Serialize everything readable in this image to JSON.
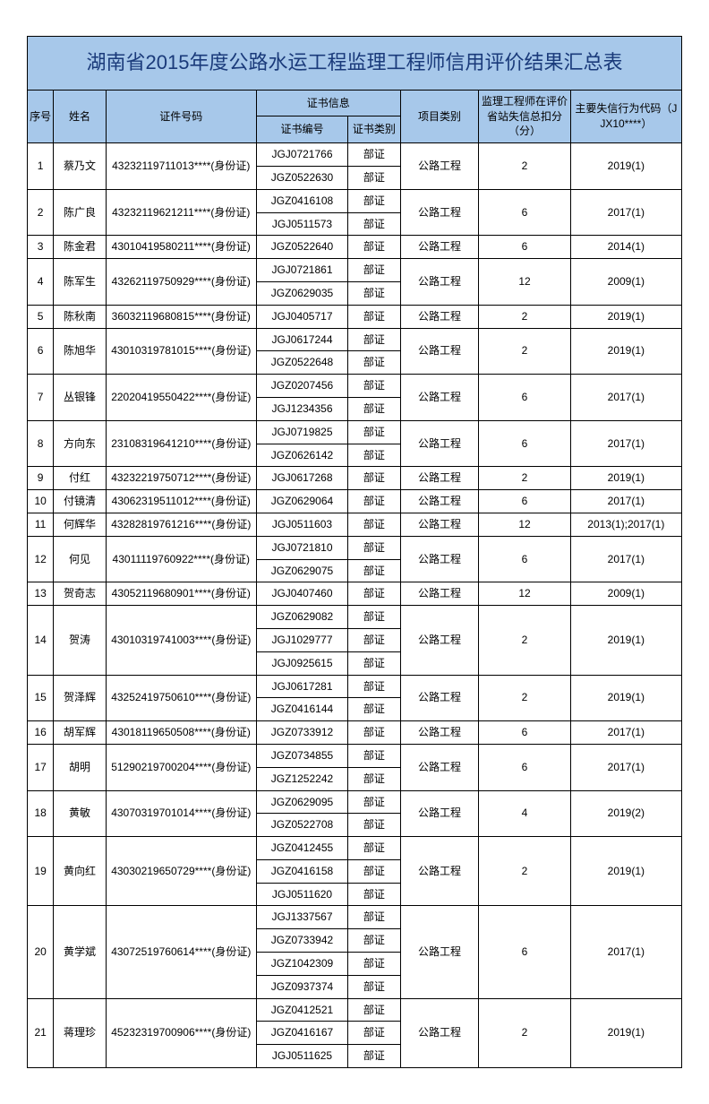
{
  "title": "湖南省2015年度公路水运工程监理工程师信用评价结果汇总表",
  "headers": {
    "seq": "序号",
    "name": "姓名",
    "id": "证件号码",
    "certinfo": "证书信息",
    "certno": "证书编号",
    "certtype": "证书类别",
    "project": "项目类别",
    "score": "监理工程师在评价省站失信总扣分（分）",
    "code": "主要失信行为代码（JJX10****）"
  },
  "colors": {
    "header_bg": "#a7c8ea",
    "title_color": "#1a3a7a",
    "border": "#000000"
  },
  "rows": [
    {
      "seq": "1",
      "name": "蔡乃文",
      "id": "43232119711013****(身份证)",
      "certs": [
        {
          "no": "JGJ0721766",
          "tp": "部证"
        },
        {
          "no": "JGZ0522630",
          "tp": "部证"
        }
      ],
      "proj": "公路工程",
      "score": "2",
      "code": "2019(1)"
    },
    {
      "seq": "2",
      "name": "陈广良",
      "id": "43232119621211****(身份证)",
      "certs": [
        {
          "no": "JGZ0416108",
          "tp": "部证"
        },
        {
          "no": "JGJ0511573",
          "tp": "部证"
        }
      ],
      "proj": "公路工程",
      "score": "6",
      "code": "2017(1)"
    },
    {
      "seq": "3",
      "name": "陈金君",
      "id": "43010419580211****(身份证)",
      "certs": [
        {
          "no": "JGZ0522640",
          "tp": "部证"
        }
      ],
      "proj": "公路工程",
      "score": "6",
      "code": "2014(1)"
    },
    {
      "seq": "4",
      "name": "陈军生",
      "id": "43262119750929****(身份证)",
      "certs": [
        {
          "no": "JGJ0721861",
          "tp": "部证"
        },
        {
          "no": "JGZ0629035",
          "tp": "部证"
        }
      ],
      "proj": "公路工程",
      "score": "12",
      "code": "2009(1)"
    },
    {
      "seq": "5",
      "name": "陈秋南",
      "id": "36032119680815****(身份证)",
      "certs": [
        {
          "no": "JGJ0405717",
          "tp": "部证"
        }
      ],
      "proj": "公路工程",
      "score": "2",
      "code": "2019(1)"
    },
    {
      "seq": "6",
      "name": "陈旭华",
      "id": "43010319781015****(身份证)",
      "certs": [
        {
          "no": "JGJ0617244",
          "tp": "部证"
        },
        {
          "no": "JGZ0522648",
          "tp": "部证"
        }
      ],
      "proj": "公路工程",
      "score": "2",
      "code": "2019(1)"
    },
    {
      "seq": "7",
      "name": "丛银锋",
      "id": "22020419550422****(身份证)",
      "certs": [
        {
          "no": "JGZ0207456",
          "tp": "部证"
        },
        {
          "no": "JGJ1234356",
          "tp": "部证"
        }
      ],
      "proj": "公路工程",
      "score": "6",
      "code": "2017(1)"
    },
    {
      "seq": "8",
      "name": "方向东",
      "id": "23108319641210****(身份证)",
      "certs": [
        {
          "no": "JGJ0719825",
          "tp": "部证"
        },
        {
          "no": "JGZ0626142",
          "tp": "部证"
        }
      ],
      "proj": "公路工程",
      "score": "6",
      "code": "2017(1)"
    },
    {
      "seq": "9",
      "name": "付红",
      "id": "43232219750712****(身份证)",
      "certs": [
        {
          "no": "JGJ0617268",
          "tp": "部证"
        }
      ],
      "proj": "公路工程",
      "score": "2",
      "code": "2019(1)"
    },
    {
      "seq": "10",
      "name": "付镜清",
      "id": "43062319511012****(身份证)",
      "certs": [
        {
          "no": "JGZ0629064",
          "tp": "部证"
        }
      ],
      "proj": "公路工程",
      "score": "6",
      "code": "2017(1)"
    },
    {
      "seq": "11",
      "name": "何辉华",
      "id": "43282819761216****(身份证)",
      "certs": [
        {
          "no": "JGJ0511603",
          "tp": "部证"
        }
      ],
      "proj": "公路工程",
      "score": "12",
      "code": "2013(1);2017(1)"
    },
    {
      "seq": "12",
      "name": "何见",
      "id": "43011119760922****(身份证)",
      "certs": [
        {
          "no": "JGJ0721810",
          "tp": "部证"
        },
        {
          "no": "JGZ0629075",
          "tp": "部证"
        }
      ],
      "proj": "公路工程",
      "score": "6",
      "code": "2017(1)"
    },
    {
      "seq": "13",
      "name": "贺奇志",
      "id": "43052119680901****(身份证)",
      "certs": [
        {
          "no": "JGJ0407460",
          "tp": "部证"
        }
      ],
      "proj": "公路工程",
      "score": "12",
      "code": "2009(1)"
    },
    {
      "seq": "14",
      "name": "贺涛",
      "id": "43010319741003****(身份证)",
      "certs": [
        {
          "no": "JGZ0629082",
          "tp": "部证"
        },
        {
          "no": "JGJ1029777",
          "tp": "部证"
        },
        {
          "no": "JGJ0925615",
          "tp": "部证"
        }
      ],
      "proj": "公路工程",
      "score": "2",
      "code": "2019(1)"
    },
    {
      "seq": "15",
      "name": "贺泽辉",
      "id": "43252419750610****(身份证)",
      "certs": [
        {
          "no": "JGJ0617281",
          "tp": "部证"
        },
        {
          "no": "JGZ0416144",
          "tp": "部证"
        }
      ],
      "proj": "公路工程",
      "score": "2",
      "code": "2019(1)"
    },
    {
      "seq": "16",
      "name": "胡军辉",
      "id": "43018119650508****(身份证)",
      "certs": [
        {
          "no": "JGZ0733912",
          "tp": "部证"
        }
      ],
      "proj": "公路工程",
      "score": "6",
      "code": "2017(1)"
    },
    {
      "seq": "17",
      "name": "胡明",
      "id": "51290219700204****(身份证)",
      "certs": [
        {
          "no": "JGZ0734855",
          "tp": "部证"
        },
        {
          "no": "JGZ1252242",
          "tp": "部证"
        }
      ],
      "proj": "公路工程",
      "score": "6",
      "code": "2017(1)"
    },
    {
      "seq": "18",
      "name": "黄敏",
      "id": "43070319701014****(身份证)",
      "certs": [
        {
          "no": "JGZ0629095",
          "tp": "部证"
        },
        {
          "no": "JGZ0522708",
          "tp": "部证"
        }
      ],
      "proj": "公路工程",
      "score": "4",
      "code": "2019(2)"
    },
    {
      "seq": "19",
      "name": "黄向红",
      "id": "43030219650729****(身份证)",
      "certs": [
        {
          "no": "JGZ0412455",
          "tp": "部证"
        },
        {
          "no": "JGZ0416158",
          "tp": "部证"
        },
        {
          "no": "JGJ0511620",
          "tp": "部证"
        }
      ],
      "proj": "公路工程",
      "score": "2",
      "code": "2019(1)"
    },
    {
      "seq": "20",
      "name": "黄学斌",
      "id": "43072519760614****(身份证)",
      "certs": [
        {
          "no": "JGJ1337567",
          "tp": "部证"
        },
        {
          "no": "JGZ0733942",
          "tp": "部证"
        },
        {
          "no": "JGZ1042309",
          "tp": "部证"
        },
        {
          "no": "JGZ0937374",
          "tp": "部证"
        }
      ],
      "proj": "公路工程",
      "score": "6",
      "code": "2017(1)"
    },
    {
      "seq": "21",
      "name": "蒋理珍",
      "id": "45232319700906****(身份证)",
      "certs": [
        {
          "no": "JGZ0412521",
          "tp": "部证"
        },
        {
          "no": "JGZ0416167",
          "tp": "部证"
        },
        {
          "no": "JGJ0511625",
          "tp": "部证"
        }
      ],
      "proj": "公路工程",
      "score": "2",
      "code": "2019(1)"
    }
  ]
}
